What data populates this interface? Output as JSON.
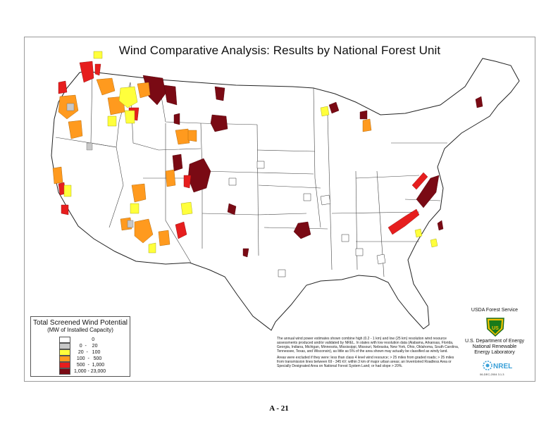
{
  "title": "Wind Comparative Analysis: Results by National Forest Unit",
  "legend": {
    "title": "Total Screened Wind Potential",
    "subtitle": "(MW of Installed Capacity)",
    "classes": [
      {
        "label": "             0",
        "color": "#ffffff"
      },
      {
        "label": "    0  -    20",
        "color": "#c8c8c8"
      },
      {
        "label": "   20  -   100",
        "color": "#ffff3c"
      },
      {
        "label": "  100  -   500",
        "color": "#ff9a1e"
      },
      {
        "label": "  500  -  1,000",
        "color": "#e61e1e"
      },
      {
        "label": "1,000 - 23,000",
        "color": "#7a0a14"
      }
    ]
  },
  "notes": {
    "p1": "The annual wind power estimates shown combine high (0.2 - 1 km) and low (25 km) resolution wind resource assessments produced and/or validated by NREL.  In states with low resolution data (Alabama, Arkansas, Florida, Georgia, Indiana, Michigan, Minnesota, Mississippi, Missouri, Nebraska, New York, Ohio, Oklahoma, South Carolina, Tennessee, Texas, and Wisconsin), as little as 5% of the area shown may actually be classified as windy land.",
    "p2": "Areas were excluded if they were: less than class 4 level wind resource; > 25 miles from graded roads; > 25 miles from transmission lines between 69 - 345 kV; within 3 km of major urban areas; an Inventoried Roadless Area or Specially Designated Area on National Forest System Land; or had slope > 20%."
  },
  "usda": {
    "name": "USDA Forest Service",
    "shield_text": "US"
  },
  "doe": {
    "line1": "U.S. Department of Energy",
    "line2": "National Renewable",
    "line3": "Energy Laboratory",
    "logo_text": "NREL"
  },
  "date_code": "06-DEC-2004 3.1.3",
  "page_number": "A - 21"
}
